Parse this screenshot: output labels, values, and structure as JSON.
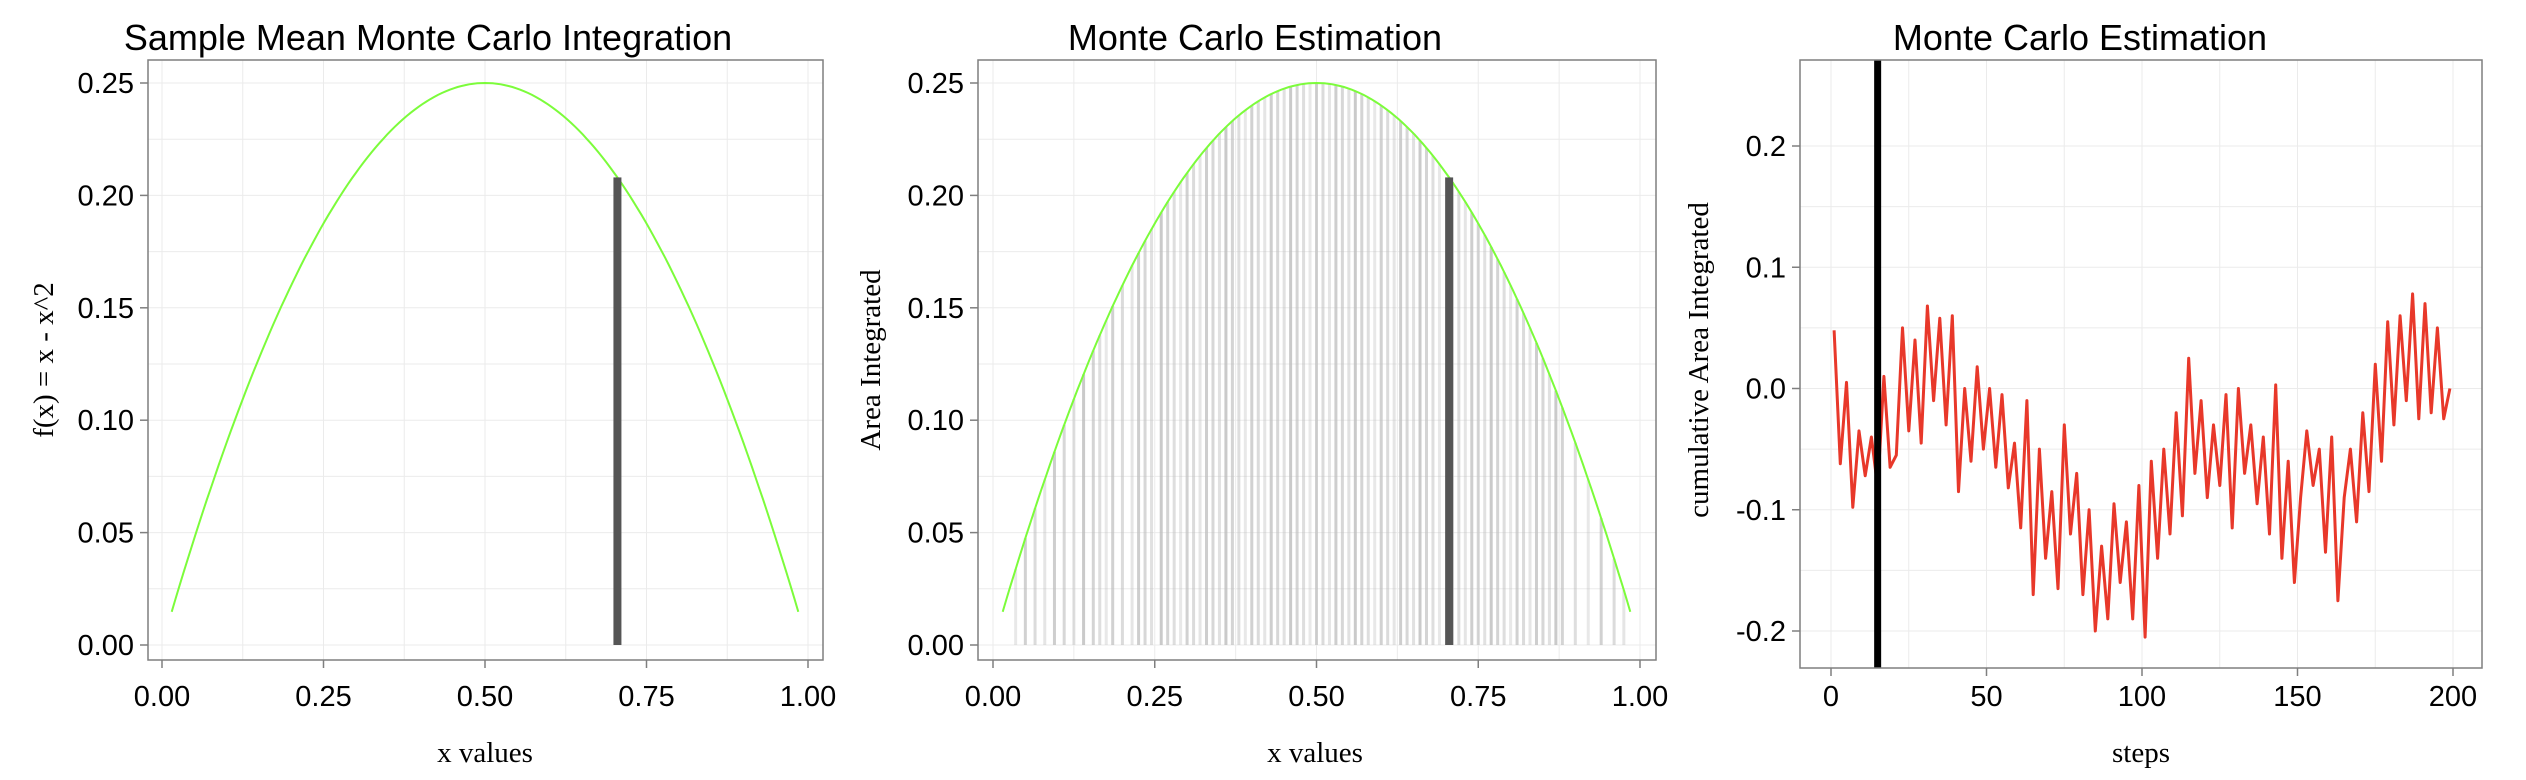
{
  "chart_data": [
    {
      "type": "line",
      "title": "Sample Mean Monte Carlo Integration",
      "xlabel": "x values",
      "ylabel": "f(x) = x - x^2",
      "xlim": [
        0,
        1
      ],
      "ylim": [
        0,
        0.25
      ],
      "x_ticks": [
        0.0,
        0.25,
        0.5,
        0.75,
        1.0
      ],
      "x_tick_labels": [
        "0.00",
        "0.25",
        "0.50",
        "0.75",
        "1.00"
      ],
      "y_ticks": [
        0.0,
        0.05,
        0.1,
        0.15,
        0.2,
        0.25
      ],
      "y_tick_labels": [
        "0.00",
        "0.05",
        "0.10",
        "0.15",
        "0.20",
        "0.25"
      ],
      "grid": true,
      "curve": {
        "function": "x - x^2",
        "x_range": [
          0.015,
          0.985
        ],
        "color": "#7CFC3B"
      },
      "highlight_bar": {
        "x": 0.705,
        "y": 0.208,
        "color": "#555555"
      }
    },
    {
      "type": "bar",
      "title": "Monte Carlo Estimation",
      "xlabel": "x values",
      "ylabel": "Area Integrated",
      "xlim": [
        0,
        1
      ],
      "ylim": [
        0,
        0.25
      ],
      "x_ticks": [
        0.0,
        0.25,
        0.5,
        0.75,
        1.0
      ],
      "x_tick_labels": [
        "0.00",
        "0.25",
        "0.50",
        "0.75",
        "1.00"
      ],
      "y_ticks": [
        0.0,
        0.05,
        0.1,
        0.15,
        0.2,
        0.25
      ],
      "y_tick_labels": [
        "0.00",
        "0.05",
        "0.10",
        "0.15",
        "0.20",
        "0.25"
      ],
      "grid": true,
      "curve": {
        "function": "x - x^2",
        "x_range": [
          0.015,
          0.985
        ],
        "color": "#7CFC3B"
      },
      "sample_x": [
        0.035,
        0.05,
        0.065,
        0.08,
        0.095,
        0.11,
        0.125,
        0.14,
        0.155,
        0.165,
        0.175,
        0.185,
        0.2,
        0.215,
        0.225,
        0.235,
        0.245,
        0.26,
        0.27,
        0.28,
        0.29,
        0.3,
        0.31,
        0.32,
        0.33,
        0.34,
        0.35,
        0.36,
        0.37,
        0.38,
        0.39,
        0.4,
        0.41,
        0.42,
        0.43,
        0.44,
        0.45,
        0.46,
        0.47,
        0.48,
        0.49,
        0.5,
        0.51,
        0.52,
        0.53,
        0.54,
        0.55,
        0.56,
        0.57,
        0.58,
        0.59,
        0.6,
        0.61,
        0.62,
        0.63,
        0.64,
        0.65,
        0.66,
        0.67,
        0.68,
        0.69,
        0.71,
        0.72,
        0.73,
        0.74,
        0.75,
        0.76,
        0.77,
        0.78,
        0.79,
        0.8,
        0.81,
        0.82,
        0.83,
        0.84,
        0.85,
        0.86,
        0.87,
        0.88,
        0.9,
        0.92,
        0.94,
        0.96,
        0.975
      ],
      "sample_bar_color": "#bdbdbd",
      "highlight_bar": {
        "x": 0.705,
        "y": 0.208,
        "color": "#555555"
      }
    },
    {
      "type": "line",
      "title": "Monte Carlo Estimation",
      "xlabel": "steps",
      "ylabel": "cumulative Area Integrated",
      "xlim": [
        -4,
        208
      ],
      "ylim": [
        -0.23,
        0.27
      ],
      "x_ticks": [
        0,
        50,
        100,
        150,
        200
      ],
      "x_tick_labels": [
        "0",
        "50",
        "100",
        "150",
        "200"
      ],
      "y_ticks": [
        -0.2,
        -0.1,
        0.0,
        0.1,
        0.2
      ],
      "y_tick_labels": [
        "-0.2",
        "-0.1",
        "0.0",
        "0.1",
        "0.2"
      ],
      "grid": true,
      "series": [
        {
          "color": "#E8382A",
          "x": [
            1,
            3,
            5,
            7,
            9,
            11,
            13,
            15,
            17,
            19,
            21,
            23,
            25,
            27,
            29,
            31,
            33,
            35,
            37,
            39,
            41,
            43,
            45,
            47,
            49,
            51,
            53,
            55,
            57,
            59,
            61,
            63,
            65,
            67,
            69,
            71,
            73,
            75,
            77,
            79,
            81,
            83,
            85,
            87,
            89,
            91,
            93,
            95,
            97,
            99,
            101,
            103,
            105,
            107,
            109,
            111,
            113,
            115,
            117,
            119,
            121,
            123,
            125,
            127,
            129,
            131,
            133,
            135,
            137,
            139,
            141,
            143,
            145,
            147,
            149,
            151,
            153,
            155,
            157,
            159,
            161,
            163,
            165,
            167,
            169,
            171,
            173,
            175,
            177,
            179,
            181,
            183,
            185,
            187,
            189,
            191,
            193,
            195,
            197,
            199
          ],
          "values": [
            0.048,
            -0.062,
            0.005,
            -0.098,
            -0.035,
            -0.072,
            -0.04,
            -0.082,
            0.01,
            -0.065,
            -0.055,
            0.05,
            -0.035,
            0.04,
            -0.045,
            0.068,
            -0.01,
            0.058,
            -0.03,
            0.06,
            -0.085,
            0.0,
            -0.06,
            0.018,
            -0.05,
            0.0,
            -0.065,
            -0.005,
            -0.082,
            -0.045,
            -0.115,
            -0.01,
            -0.17,
            -0.05,
            -0.14,
            -0.085,
            -0.165,
            -0.03,
            -0.12,
            -0.07,
            -0.17,
            -0.1,
            -0.2,
            -0.13,
            -0.19,
            -0.095,
            -0.16,
            -0.11,
            -0.19,
            -0.08,
            -0.205,
            -0.06,
            -0.14,
            -0.05,
            -0.12,
            -0.02,
            -0.105,
            0.025,
            -0.07,
            -0.01,
            -0.09,
            -0.03,
            -0.08,
            -0.005,
            -0.115,
            0.0,
            -0.07,
            -0.03,
            -0.095,
            -0.04,
            -0.12,
            0.003,
            -0.14,
            -0.06,
            -0.16,
            -0.09,
            -0.035,
            -0.08,
            -0.05,
            -0.135,
            -0.04,
            -0.175,
            -0.09,
            -0.05,
            -0.11,
            -0.02,
            -0.085,
            0.02,
            -0.06,
            0.055,
            -0.03,
            0.06,
            -0.01,
            0.078,
            -0.025,
            0.07,
            -0.02,
            0.05,
            -0.025,
            0.0
          ]
        }
      ],
      "marker_line": {
        "x": 15,
        "color": "#000000"
      }
    }
  ]
}
